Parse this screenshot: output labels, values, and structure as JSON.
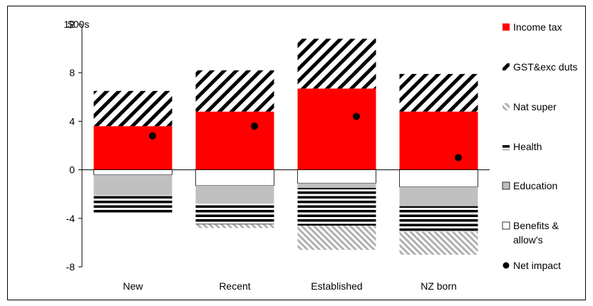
{
  "chart_data": {
    "type": "bar",
    "stacked": true,
    "unit_label": "$00s",
    "categories": [
      "New",
      "Recent",
      "Established",
      "NZ born"
    ],
    "ylim": [
      -8,
      12
    ],
    "yticks": [
      -8,
      -4,
      0,
      4,
      8,
      12
    ],
    "grid": false,
    "legend_position": "right",
    "series": [
      {
        "name": "Income tax",
        "color": "#ff0000",
        "pattern": "solid",
        "values": [
          3.6,
          4.8,
          6.7,
          4.8
        ]
      },
      {
        "name": "GST&exc duts",
        "color": "#000000",
        "pattern": "diagonal-thick",
        "values": [
          2.9,
          3.4,
          4.1,
          3.1
        ]
      },
      {
        "name": "Nat super",
        "color": "#b0b0b0",
        "pattern": "diagonal-light",
        "values": [
          0,
          -0.3,
          -2.0,
          -1.9
        ]
      },
      {
        "name": "Health",
        "color": "#000000",
        "pattern": "horizontal-stripes",
        "values": [
          -1.5,
          -1.7,
          -3.1,
          -2.1
        ]
      },
      {
        "name": "Education",
        "color": "#c0c0c0",
        "pattern": "solid",
        "values": [
          -1.7,
          -1.5,
          -0.4,
          -1.6
        ]
      },
      {
        "name": "Benefits & allow's",
        "color": "#ffffff",
        "pattern": "solid-outline",
        "values": [
          -0.4,
          -1.3,
          -1.1,
          -1.4
        ]
      }
    ],
    "net_impact": {
      "name": "Net impact",
      "color": "#000000",
      "values": [
        2.8,
        3.6,
        4.4,
        1.0
      ]
    }
  }
}
